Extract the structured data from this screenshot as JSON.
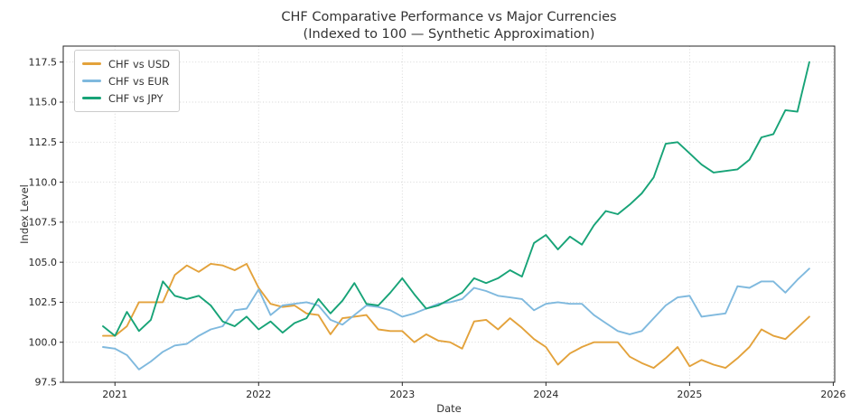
{
  "chart_data": {
    "type": "line",
    "title": "CHF Comparative Performance vs Major Currencies",
    "subtitle": "(Indexed to 100 — Synthetic Approximation)",
    "xlabel": "Date",
    "ylabel": "Index Level",
    "grid": true,
    "legend_position": "upper left",
    "xlim": [
      2020.64,
      2026.01
    ],
    "ylim": [
      97.5,
      118.5
    ],
    "x_ticks": [
      2021,
      2022,
      2023,
      2024,
      2025,
      2026
    ],
    "y_ticks": [
      97.5,
      100.0,
      102.5,
      105.0,
      107.5,
      110.0,
      112.5,
      115.0,
      117.5
    ],
    "axis_color": "#262626",
    "grid_color": "#d2d2d2",
    "months": [
      "2020-12",
      "2021-01",
      "2021-02",
      "2021-03",
      "2021-04",
      "2021-05",
      "2021-06",
      "2021-07",
      "2021-08",
      "2021-09",
      "2021-10",
      "2021-11",
      "2021-12",
      "2022-01",
      "2022-02",
      "2022-03",
      "2022-04",
      "2022-05",
      "2022-06",
      "2022-07",
      "2022-08",
      "2022-09",
      "2022-10",
      "2022-11",
      "2022-12",
      "2023-01",
      "2023-02",
      "2023-03",
      "2023-04",
      "2023-05",
      "2023-06",
      "2023-07",
      "2023-08",
      "2023-09",
      "2023-10",
      "2023-11",
      "2023-12",
      "2024-01",
      "2024-02",
      "2024-03",
      "2024-04",
      "2024-05",
      "2024-06",
      "2024-07",
      "2024-08",
      "2024-09",
      "2024-10",
      "2024-11",
      "2024-12",
      "2025-01",
      "2025-02",
      "2025-03",
      "2025-04",
      "2025-05",
      "2025-06",
      "2025-07",
      "2025-08",
      "2025-09",
      "2025-10",
      "2025-11"
    ],
    "series": [
      {
        "name": "CHF vs USD",
        "color": "#e3a23b",
        "values": [
          100.4,
          100.4,
          101.0,
          102.5,
          102.5,
          102.5,
          104.2,
          104.8,
          104.4,
          104.9,
          104.8,
          104.5,
          104.9,
          103.4,
          102.4,
          102.2,
          102.3,
          101.8,
          101.7,
          100.5,
          101.5,
          101.6,
          101.7,
          100.8,
          100.7,
          100.7,
          100.0,
          100.5,
          100.1,
          100.0,
          99.6,
          101.3,
          101.4,
          100.8,
          101.5,
          100.9,
          100.2,
          99.7,
          98.6,
          99.3,
          99.7,
          100.0,
          100.0,
          100.0,
          99.1,
          98.7,
          98.4,
          99.0,
          99.7,
          98.5,
          98.9,
          98.6,
          98.4,
          99.0,
          99.7,
          100.8,
          100.4,
          100.2,
          100.9,
          101.6
        ]
      },
      {
        "name": "CHF vs EUR",
        "color": "#7fb9de",
        "values": [
          99.7,
          99.6,
          99.2,
          98.3,
          98.8,
          99.4,
          99.8,
          99.9,
          100.4,
          100.8,
          101.0,
          102.0,
          102.1,
          103.3,
          101.7,
          102.3,
          102.4,
          102.5,
          102.3,
          101.4,
          101.1,
          101.7,
          102.3,
          102.2,
          102.0,
          101.6,
          101.8,
          102.1,
          102.4,
          102.5,
          102.7,
          103.4,
          103.2,
          102.9,
          102.8,
          102.7,
          102.0,
          102.4,
          102.5,
          102.4,
          102.4,
          101.7,
          101.2,
          100.7,
          100.5,
          100.7,
          101.5,
          102.3,
          102.8,
          102.9,
          101.6,
          101.7,
          101.8,
          103.5,
          103.4,
          103.8,
          103.8,
          103.1,
          103.9,
          104.6
        ]
      },
      {
        "name": "CHF vs JPY",
        "color": "#17a377",
        "values": [
          101.0,
          100.4,
          101.9,
          100.7,
          101.4,
          103.8,
          102.9,
          102.7,
          102.9,
          102.3,
          101.3,
          101.0,
          101.6,
          100.8,
          101.3,
          100.6,
          101.2,
          101.5,
          102.7,
          101.8,
          102.6,
          103.7,
          102.4,
          102.3,
          103.1,
          104.0,
          103.0,
          102.1,
          102.3,
          102.7,
          103.1,
          104.0,
          103.7,
          104.0,
          104.5,
          104.1,
          106.2,
          106.7,
          105.8,
          106.6,
          106.1,
          107.3,
          108.2,
          108.0,
          108.6,
          109.3,
          110.3,
          112.4,
          112.5,
          111.8,
          111.1,
          110.6,
          110.7,
          110.8,
          111.4,
          112.8,
          113.0,
          114.5,
          114.4,
          117.5
        ]
      }
    ]
  }
}
